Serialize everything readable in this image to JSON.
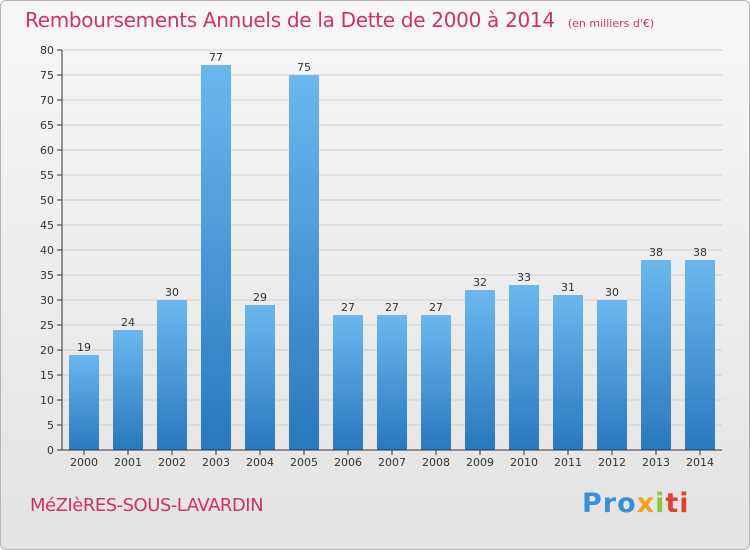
{
  "header": {
    "title": "Remboursements Annuels de la Dette de 2000 à 2014",
    "subtitle": "(en milliers d'€)"
  },
  "footer": {
    "town": "MéZIèRES-SOUS-LAVARDIN",
    "logo": [
      "Pro",
      "x",
      "i",
      "ti"
    ]
  },
  "colors": {
    "accent": "#cc3366",
    "bar_light": "#6db7ef",
    "bar_dark": "#2a78bd",
    "grid": "#cfcfcf"
  },
  "chart_data": {
    "type": "bar",
    "categories": [
      "2000",
      "2001",
      "2002",
      "2003",
      "2004",
      "2005",
      "2006",
      "2007",
      "2008",
      "2009",
      "2010",
      "2011",
      "2012",
      "2013",
      "2014"
    ],
    "values": [
      19,
      24,
      30,
      77,
      29,
      75,
      27,
      27,
      27,
      32,
      33,
      31,
      30,
      38,
      38
    ],
    "ylim": [
      0,
      80
    ],
    "yticks": [
      0,
      5,
      10,
      15,
      20,
      25,
      30,
      35,
      40,
      45,
      50,
      55,
      60,
      65,
      70,
      75,
      80
    ],
    "grid": true,
    "data_labels": true
  }
}
